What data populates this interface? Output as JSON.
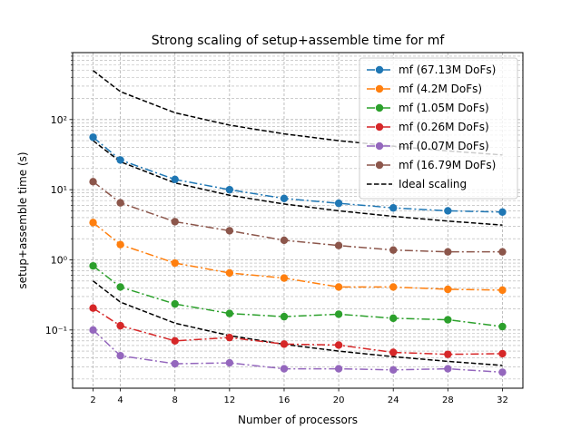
{
  "chart_data": {
    "type": "line",
    "title": "Strong scaling of setup+assemble time for mf",
    "xlabel": "Number of processors",
    "ylabel": "setup+assemble time (s)",
    "x_scale": "linear",
    "y_scale": "log",
    "xlim": [
      0.5,
      33.5
    ],
    "ylim": [
      0.0148,
      900
    ],
    "x_ticks": [
      2,
      4,
      8,
      12,
      16,
      20,
      24,
      28,
      32
    ],
    "x_tick_labels": [
      "2",
      "4",
      "8",
      "12",
      "16",
      "20",
      "24",
      "28",
      "32"
    ],
    "y_ticks": [
      0.1,
      1,
      10,
      100
    ],
    "y_tick_labels": [
      "10⁻¹",
      "10⁰",
      "10¹",
      "10²"
    ],
    "grid": true,
    "legend_position": "upper right",
    "x": [
      2,
      4,
      8,
      12,
      16,
      20,
      24,
      28,
      32
    ],
    "series": [
      {
        "name": "mf (67.13M DoFs)",
        "color": "#1f77b4",
        "marker": "circle",
        "linestyle": "dashdot",
        "values": [
          56.0,
          26.5,
          14.0,
          10.0,
          7.5,
          6.4,
          5.5,
          5.0,
          4.8
        ]
      },
      {
        "name": "mf (4.2M DoFs)",
        "color": "#ff7f0e",
        "marker": "circle",
        "linestyle": "dashdot",
        "values": [
          3.4,
          1.65,
          0.9,
          0.65,
          0.55,
          0.41,
          0.41,
          0.38,
          0.37
        ]
      },
      {
        "name": "mf (1.05M DoFs)",
        "color": "#2ca02c",
        "marker": "circle",
        "linestyle": "dashdot",
        "values": [
          0.82,
          0.41,
          0.235,
          0.172,
          0.155,
          0.168,
          0.147,
          0.14,
          0.112
        ]
      },
      {
        "name": "mf (0.26M DoFs)",
        "color": "#d62728",
        "marker": "circle",
        "linestyle": "dashdot",
        "values": [
          0.205,
          0.115,
          0.07,
          0.078,
          0.063,
          0.061,
          0.048,
          0.045,
          0.046
        ]
      },
      {
        "name": "mf (0.07M DoFs)",
        "color": "#9467bd",
        "marker": "circle",
        "linestyle": "dashdot",
        "values": [
          0.1,
          0.043,
          0.033,
          0.034,
          0.028,
          0.028,
          0.027,
          0.028,
          0.025
        ]
      },
      {
        "name": "mf (16.79M DoFs)",
        "color": "#8c564b",
        "marker": "circle",
        "linestyle": "dashdot",
        "values": [
          13.0,
          6.5,
          3.5,
          2.6,
          1.9,
          1.6,
          1.38,
          1.3,
          1.3
        ]
      }
    ],
    "ideal_scaling": {
      "name": "Ideal scaling",
      "color": "#000000",
      "linestyle": "dashed",
      "lines": [
        [
          500,
          250,
          125,
          83.3,
          62.5,
          50,
          41.7,
          35.7,
          31.3
        ],
        [
          50,
          25,
          12.5,
          8.33,
          6.25,
          5,
          4.17,
          3.57,
          3.13
        ],
        [
          0.5,
          0.25,
          0.125,
          0.0833,
          0.0625,
          0.05,
          0.0417,
          0.0357,
          0.0313
        ]
      ]
    }
  }
}
